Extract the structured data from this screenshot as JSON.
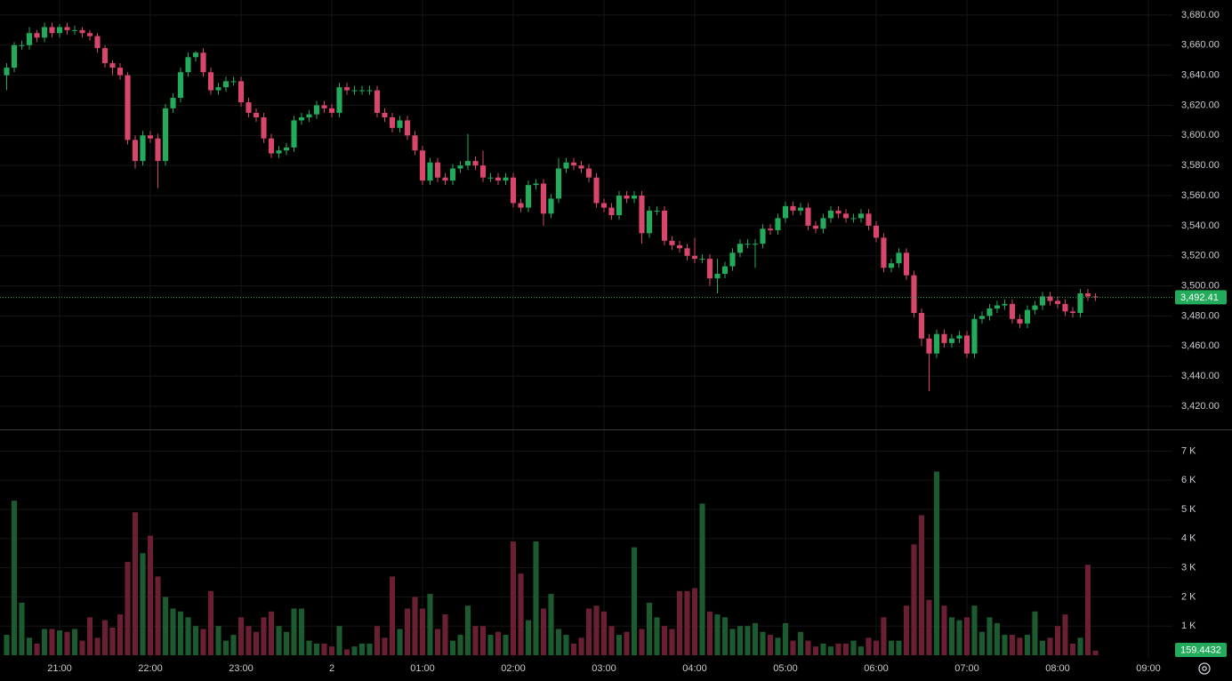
{
  "chart_data": {
    "type": "candlestick",
    "x": [
      20.4167,
      20.5,
      20.5833,
      20.6667,
      20.75,
      20.8333,
      20.9167,
      21,
      21.0833,
      21.1667,
      21.25,
      21.3333,
      21.4167,
      21.5,
      21.5833,
      21.6667,
      21.75,
      21.8333,
      21.9167,
      22,
      22.0833,
      22.1667,
      22.25,
      22.3333,
      22.4167,
      22.5,
      22.5833,
      22.6667,
      22.75,
      22.8333,
      22.9167,
      23,
      23.0833,
      23.1667,
      23.25,
      23.3333,
      23.4167,
      23.5,
      23.5833,
      23.6667,
      23.75,
      23.8333,
      23.9167,
      24,
      24.0833,
      24.1667,
      24.25,
      24.3333,
      24.4167,
      24.5,
      24.5833,
      24.6667,
      24.75,
      24.8333,
      24.9167,
      25,
      25.0833,
      25.1667,
      25.25,
      25.3333,
      25.4167,
      25.5,
      25.5833,
      25.6667,
      25.75,
      25.8333,
      25.9167,
      26,
      26.0833,
      26.1667,
      26.25,
      26.3333,
      26.4167,
      26.5,
      26.5833,
      26.6667,
      26.75,
      26.8333,
      26.9167,
      27,
      27.0833,
      27.1667,
      27.25,
      27.3333,
      27.4167,
      27.5,
      27.5833,
      27.6667,
      27.75,
      27.8333,
      27.9167,
      28,
      28.0833,
      28.1667,
      28.25,
      28.3333,
      28.4167,
      28.5,
      28.5833,
      28.6667,
      28.75,
      28.8333,
      28.9167,
      29,
      29.0833,
      29.1667,
      29.25,
      29.3333,
      29.4167,
      29.5,
      29.5833,
      29.6667,
      29.75,
      29.8333,
      29.9167,
      30,
      30.0833,
      30.1667,
      30.25,
      30.3333,
      30.4167,
      30.5,
      30.5833,
      30.6667,
      30.75,
      30.8333,
      30.9167,
      31,
      31.0833,
      31.1667,
      31.25,
      31.3333,
      31.4167,
      31.5,
      31.5833,
      31.6667,
      31.75,
      31.8333,
      31.9167,
      32,
      32.0833,
      32.1667,
      32.25,
      32.3333,
      32.4167
    ],
    "open": [
      3640,
      3645,
      3660,
      3660,
      3668,
      3665,
      3672,
      3668,
      3672,
      3670,
      3670,
      3668,
      3666,
      3658,
      3648,
      3645,
      3640,
      3597,
      3583,
      3600,
      3598,
      3583,
      3618,
      3625,
      3642,
      3652,
      3655,
      3642,
      3630,
      3632,
      3636,
      3636,
      3622,
      3615,
      3612,
      3598,
      3588,
      3590,
      3592,
      3610,
      3612,
      3614,
      3620,
      3618,
      3615,
      3632,
      3630,
      3630,
      3630,
      3630,
      3615,
      3612,
      3605,
      3610,
      3600,
      3590,
      3570,
      3582,
      3572,
      3570,
      3578,
      3580,
      3583,
      3580,
      3572,
      3572,
      3570,
      3572,
      3555,
      3552,
      3567,
      3568,
      3548,
      3558,
      3578,
      3582,
      3580,
      3578,
      3572,
      3555,
      3552,
      3547,
      3560,
      3558,
      3560,
      3535,
      3550,
      3550,
      3530,
      3527,
      3525,
      3520,
      3518,
      3518,
      3505,
      3508,
      3513,
      3522,
      3528,
      3528,
      3528,
      3538,
      3537,
      3545,
      3553,
      3550,
      3552,
      3540,
      3538,
      3545,
      3550,
      3548,
      3545,
      3545,
      3548,
      3540,
      3532,
      3512,
      3515,
      3522,
      3507,
      3482,
      3465,
      3455,
      3468,
      3462,
      3465,
      3467,
      3455,
      3478,
      3480,
      3485,
      3487,
      3488,
      3478,
      3475,
      3484,
      3487,
      3493,
      3490,
      3488,
      3483,
      3482,
      3495,
      3493
    ],
    "high": [
      3648,
      3662,
      3663,
      3672,
      3670,
      3675,
      3675,
      3674,
      3675,
      3673,
      3672,
      3670,
      3668,
      3660,
      3650,
      3648,
      3642,
      3600,
      3603,
      3603,
      3601,
      3621,
      3628,
      3645,
      3655,
      3656,
      3658,
      3645,
      3635,
      3639,
      3639,
      3639,
      3625,
      3618,
      3615,
      3601,
      3593,
      3595,
      3613,
      3615,
      3617,
      3623,
      3623,
      3621,
      3635,
      3635,
      3633,
      3633,
      3633,
      3633,
      3618,
      3615,
      3613,
      3613,
      3603,
      3593,
      3585,
      3585,
      3575,
      3581,
      3583,
      3601,
      3586,
      3590,
      3575,
      3575,
      3575,
      3575,
      3558,
      3570,
      3571,
      3571,
      3561,
      3585,
      3585,
      3585,
      3583,
      3581,
      3575,
      3558,
      3555,
      3563,
      3563,
      3563,
      3563,
      3553,
      3553,
      3553,
      3533,
      3530,
      3528,
      3532,
      3521,
      3521,
      3518,
      3516,
      3525,
      3531,
      3531,
      3531,
      3541,
      3541,
      3548,
      3556,
      3556,
      3555,
      3555,
      3543,
      3548,
      3553,
      3553,
      3551,
      3548,
      3551,
      3551,
      3543,
      3535,
      3518,
      3525,
      3525,
      3510,
      3485,
      3468,
      3471,
      3471,
      3468,
      3470,
      3470,
      3481,
      3483,
      3488,
      3490,
      3491,
      3491,
      3481,
      3487,
      3490,
      3496,
      3496,
      3493,
      3491,
      3486,
      3498,
      3498,
      3495
    ],
    "low": [
      3630,
      3642,
      3657,
      3657,
      3662,
      3662,
      3665,
      3665,
      3667,
      3667,
      3665,
      3663,
      3655,
      3645,
      3640,
      3637,
      3594,
      3578,
      3580,
      3595,
      3565,
      3580,
      3615,
      3622,
      3639,
      3649,
      3639,
      3627,
      3627,
      3629,
      3633,
      3619,
      3612,
      3609,
      3595,
      3585,
      3585,
      3587,
      3589,
      3607,
      3609,
      3611,
      3615,
      3612,
      3612,
      3627,
      3627,
      3627,
      3627,
      3612,
      3609,
      3602,
      3602,
      3597,
      3587,
      3567,
      3567,
      3569,
      3567,
      3567,
      3575,
      3577,
      3577,
      3569,
      3569,
      3567,
      3567,
      3552,
      3549,
      3549,
      3564,
      3540,
      3545,
      3555,
      3575,
      3577,
      3575,
      3569,
      3552,
      3549,
      3544,
      3544,
      3555,
      3555,
      3528,
      3532,
      3547,
      3527,
      3524,
      3522,
      3517,
      3515,
      3515,
      3500,
      3495,
      3505,
      3510,
      3519,
      3525,
      3512,
      3525,
      3534,
      3534,
      3542,
      3547,
      3547,
      3537,
      3535,
      3535,
      3542,
      3545,
      3542,
      3542,
      3542,
      3537,
      3529,
      3509,
      3509,
      3512,
      3504,
      3479,
      3460,
      3430,
      3452,
      3459,
      3459,
      3462,
      3452,
      3452,
      3475,
      3477,
      3482,
      3484,
      3475,
      3472,
      3472,
      3481,
      3484,
      3487,
      3485,
      3480,
      3479,
      3479,
      3490,
      3490
    ],
    "close": [
      3645,
      3660,
      3660,
      3668,
      3665,
      3672,
      3668,
      3672,
      3670,
      3670,
      3668,
      3666,
      3658,
      3648,
      3645,
      3640,
      3597,
      3583,
      3600,
      3598,
      3583,
      3618,
      3625,
      3642,
      3652,
      3655,
      3642,
      3630,
      3632,
      3636,
      3636,
      3622,
      3615,
      3612,
      3598,
      3588,
      3590,
      3592,
      3610,
      3612,
      3614,
      3620,
      3618,
      3615,
      3632,
      3630,
      3630,
      3630,
      3630,
      3615,
      3612,
      3605,
      3610,
      3600,
      3590,
      3570,
      3582,
      3572,
      3570,
      3578,
      3580,
      3583,
      3580,
      3572,
      3572,
      3570,
      3572,
      3555,
      3552,
      3567,
      3568,
      3548,
      3558,
      3578,
      3582,
      3580,
      3578,
      3572,
      3555,
      3552,
      3547,
      3560,
      3558,
      3560,
      3535,
      3550,
      3550,
      3530,
      3527,
      3525,
      3520,
      3518,
      3518,
      3505,
      3508,
      3513,
      3522,
      3528,
      3528,
      3528,
      3538,
      3537,
      3545,
      3553,
      3550,
      3552,
      3540,
      3538,
      3545,
      3550,
      3548,
      3545,
      3545,
      3548,
      3540,
      3532,
      3512,
      3515,
      3522,
      3507,
      3482,
      3465,
      3455,
      3468,
      3462,
      3465,
      3467,
      3455,
      3478,
      3480,
      3485,
      3487,
      3488,
      3478,
      3475,
      3484,
      3487,
      3493,
      3490,
      3488,
      3483,
      3482,
      3495,
      3493,
      3492.41
    ],
    "volume": [
      700,
      5300,
      1800,
      600,
      400,
      900,
      900,
      850,
      800,
      900,
      500,
      1300,
      600,
      1200,
      950,
      1400,
      3200,
      4900,
      3500,
      4100,
      2700,
      2000,
      1600,
      1500,
      1300,
      1000,
      900,
      2200,
      1000,
      500,
      700,
      1300,
      1000,
      800,
      1300,
      1500,
      1000,
      800,
      1600,
      1600,
      500,
      400,
      400,
      300,
      1000,
      200,
      300,
      400,
      400,
      1000,
      600,
      2700,
      900,
      1600,
      2000,
      1600,
      2100,
      900,
      1400,
      500,
      700,
      1700,
      1000,
      1000,
      700,
      800,
      700,
      3900,
      2800,
      1200,
      3900,
      1600,
      2100,
      900,
      700,
      400,
      600,
      1600,
      1700,
      1500,
      1000,
      700,
      800,
      3700,
      900,
      1800,
      1300,
      1000,
      900,
      2200,
      2200,
      2300,
      5200,
      1500,
      1400,
      1300,
      900,
      1000,
      1000,
      1100,
      800,
      700,
      600,
      1100,
      500,
      800,
      500,
      300,
      400,
      300,
      400,
      400,
      500,
      300,
      600,
      500,
      1300,
      500,
      500,
      1700,
      3800,
      4800,
      1900,
      6300,
      1700,
      1300,
      1200,
      1300,
      1700,
      800,
      1300,
      1100,
      700,
      700,
      600,
      700,
      1500,
      500,
      600,
      1000,
      1400,
      400,
      600,
      3100,
      159.4432
    ],
    "last_price": {
      "value": 3492.41,
      "label": "3,492.41"
    },
    "xlim": [
      20.343,
      33.265
    ],
    "xticks": [
      {
        "value": 21,
        "label": "21:00"
      },
      {
        "value": 22,
        "label": "22:00"
      },
      {
        "value": 23,
        "label": "23:00"
      },
      {
        "value": 24,
        "label": "2"
      },
      {
        "value": 25,
        "label": "01:00"
      },
      {
        "value": 26,
        "label": "02:00"
      },
      {
        "value": 27,
        "label": "03:00"
      },
      {
        "value": 28,
        "label": "04:00"
      },
      {
        "value": 29,
        "label": "05:00"
      },
      {
        "value": 30,
        "label": "06:00"
      },
      {
        "value": 31,
        "label": "07:00"
      },
      {
        "value": 32,
        "label": "08:00"
      },
      {
        "value": 33,
        "label": "09:00"
      }
    ],
    "ylim": [
      3404.6,
      3690
    ],
    "yticks": [
      {
        "value": 3420,
        "label": "3,420.00"
      },
      {
        "value": 3440,
        "label": "3,440.00"
      },
      {
        "value": 3460,
        "label": "3,460.00"
      },
      {
        "value": 3480,
        "label": "3,480.00"
      },
      {
        "value": 3500,
        "label": "3,500.00"
      },
      {
        "value": 3520,
        "label": "3,520.00"
      },
      {
        "value": 3540,
        "label": "3,540.00"
      },
      {
        "value": 3560,
        "label": "3,560.00"
      },
      {
        "value": 3580,
        "label": "3,580.00"
      },
      {
        "value": 3600,
        "label": "3,600.00"
      },
      {
        "value": 3620,
        "label": "3,620.00"
      },
      {
        "value": 3640,
        "label": "3,640.00"
      },
      {
        "value": 3660,
        "label": "3,660.00"
      },
      {
        "value": 3680,
        "label": "3,680.00"
      }
    ],
    "volume_lim": [
      0,
      7530
    ],
    "volume_ticks": [
      {
        "value": 1000,
        "label": "1 K"
      },
      {
        "value": 2000,
        "label": "2 K"
      },
      {
        "value": 3000,
        "label": "3 K"
      },
      {
        "value": 4000,
        "label": "4 K"
      },
      {
        "value": 5000,
        "label": "5 K"
      },
      {
        "value": 6000,
        "label": "6 K"
      },
      {
        "value": 7000,
        "label": "7 K"
      }
    ],
    "grid": true,
    "up_color": "#22ab5a",
    "down_color": "#d9466b",
    "volume_up_color": "#1c5a2f",
    "volume_down_color": "#6a1f32"
  }
}
